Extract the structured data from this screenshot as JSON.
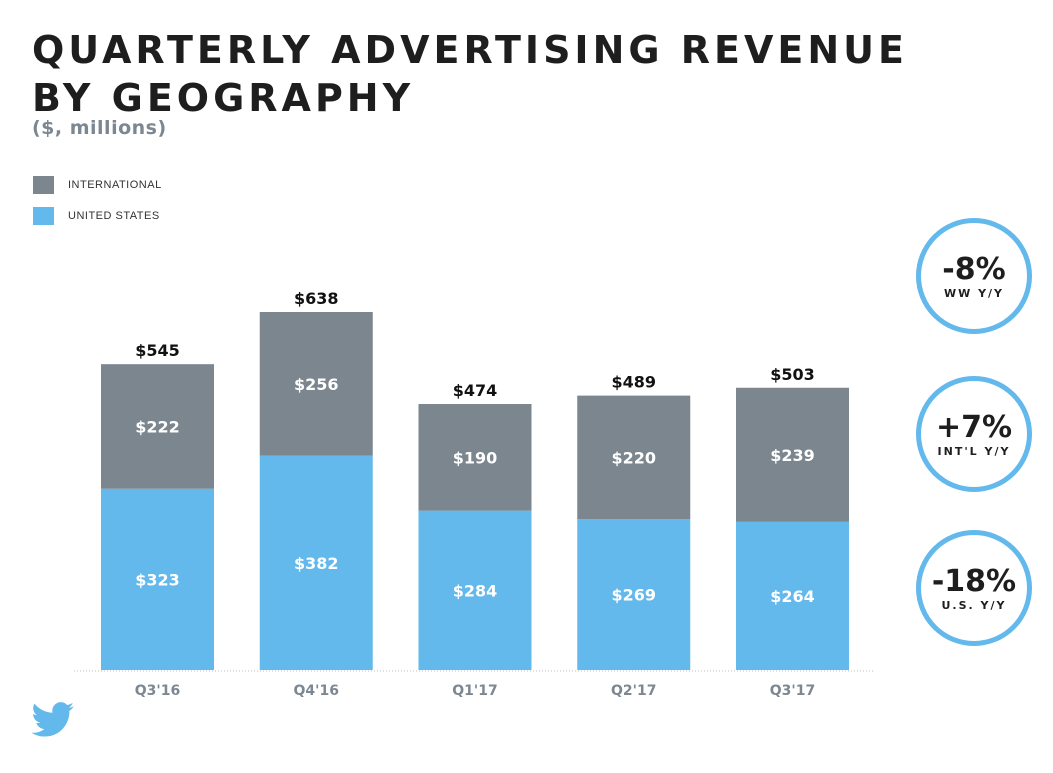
{
  "title": {
    "line1": "QUARTERLY ADVERTISING REVENUE",
    "line2": "BY GEOGRAPHY"
  },
  "subtitle": "($, millions)",
  "legend": [
    {
      "label": "INTERNATIONAL",
      "color": "#7b868f"
    },
    {
      "label": "UNITED STATES",
      "color": "#63b8ec"
    }
  ],
  "kpis": [
    {
      "value": "-8%",
      "caption": "WW Y/Y"
    },
    {
      "value": "+7%",
      "caption": "INT'L Y/Y"
    },
    {
      "value": "-18%",
      "caption": "U.S. Y/Y"
    }
  ],
  "logo_icon": "twitter-bird-icon",
  "chart_data": {
    "type": "bar",
    "stacked": true,
    "title": "QUARTERLY ADVERTISING REVENUE BY GEOGRAPHY",
    "subtitle": "($, millions)",
    "xlabel": "",
    "ylabel": "",
    "categories": [
      "Q3'16",
      "Q4'16",
      "Q1'17",
      "Q2'17",
      "Q3'17"
    ],
    "series": [
      {
        "name": "UNITED STATES",
        "values": [
          323,
          382,
          284,
          269,
          264
        ],
        "labels": [
          "$323",
          "$382",
          "$284",
          "$269",
          "$264"
        ],
        "color": "#63b8ec"
      },
      {
        "name": "INTERNATIONAL",
        "values": [
          222,
          256,
          190,
          220,
          239
        ],
        "labels": [
          "$222",
          "$256",
          "$190",
          "$220",
          "$239"
        ],
        "color": "#7b868f"
      }
    ],
    "totals": [
      545,
      638,
      474,
      489,
      503
    ],
    "total_labels": [
      "$545",
      "$638",
      "$474",
      "$489",
      "$503"
    ],
    "ylim": [
      0,
      638
    ],
    "grid": false,
    "legend_position": "top-left"
  }
}
